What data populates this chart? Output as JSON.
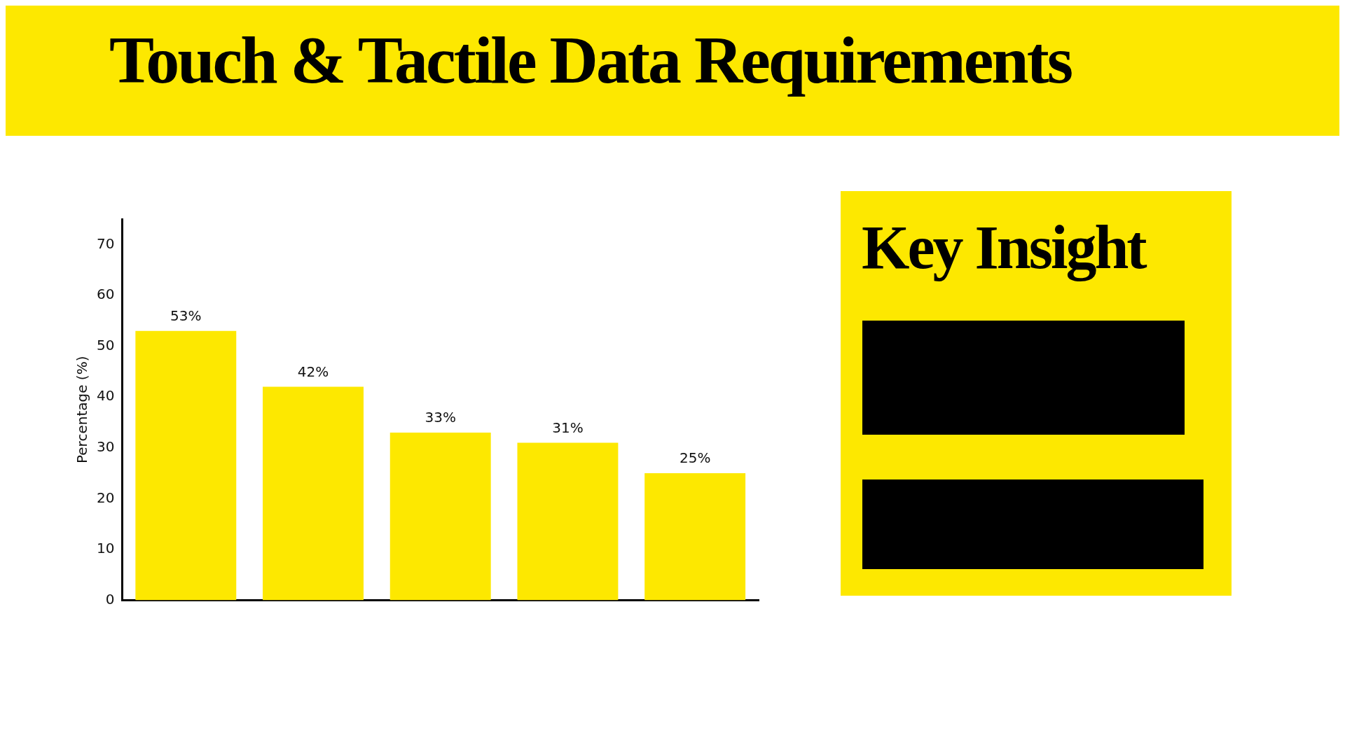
{
  "chart_data": [
    {
      "type": "bar",
      "title": "Touch & Tactile Data Requirements",
      "ylabel": "Percentage (%)",
      "categories": [
        null,
        null,
        null,
        null,
        null
      ],
      "values": [
        53,
        42,
        33,
        31,
        25
      ],
      "value_labels": [
        "53%",
        "42%",
        "33%",
        "31%",
        "25%"
      ],
      "color": "#fde800",
      "ylim": [
        0,
        75
      ],
      "yticks": [
        0,
        10,
        20,
        30,
        40,
        50,
        60,
        70
      ],
      "grid": false,
      "legend": false
    },
    {
      "type": "other",
      "title": "Key Insight"
    }
  ]
}
